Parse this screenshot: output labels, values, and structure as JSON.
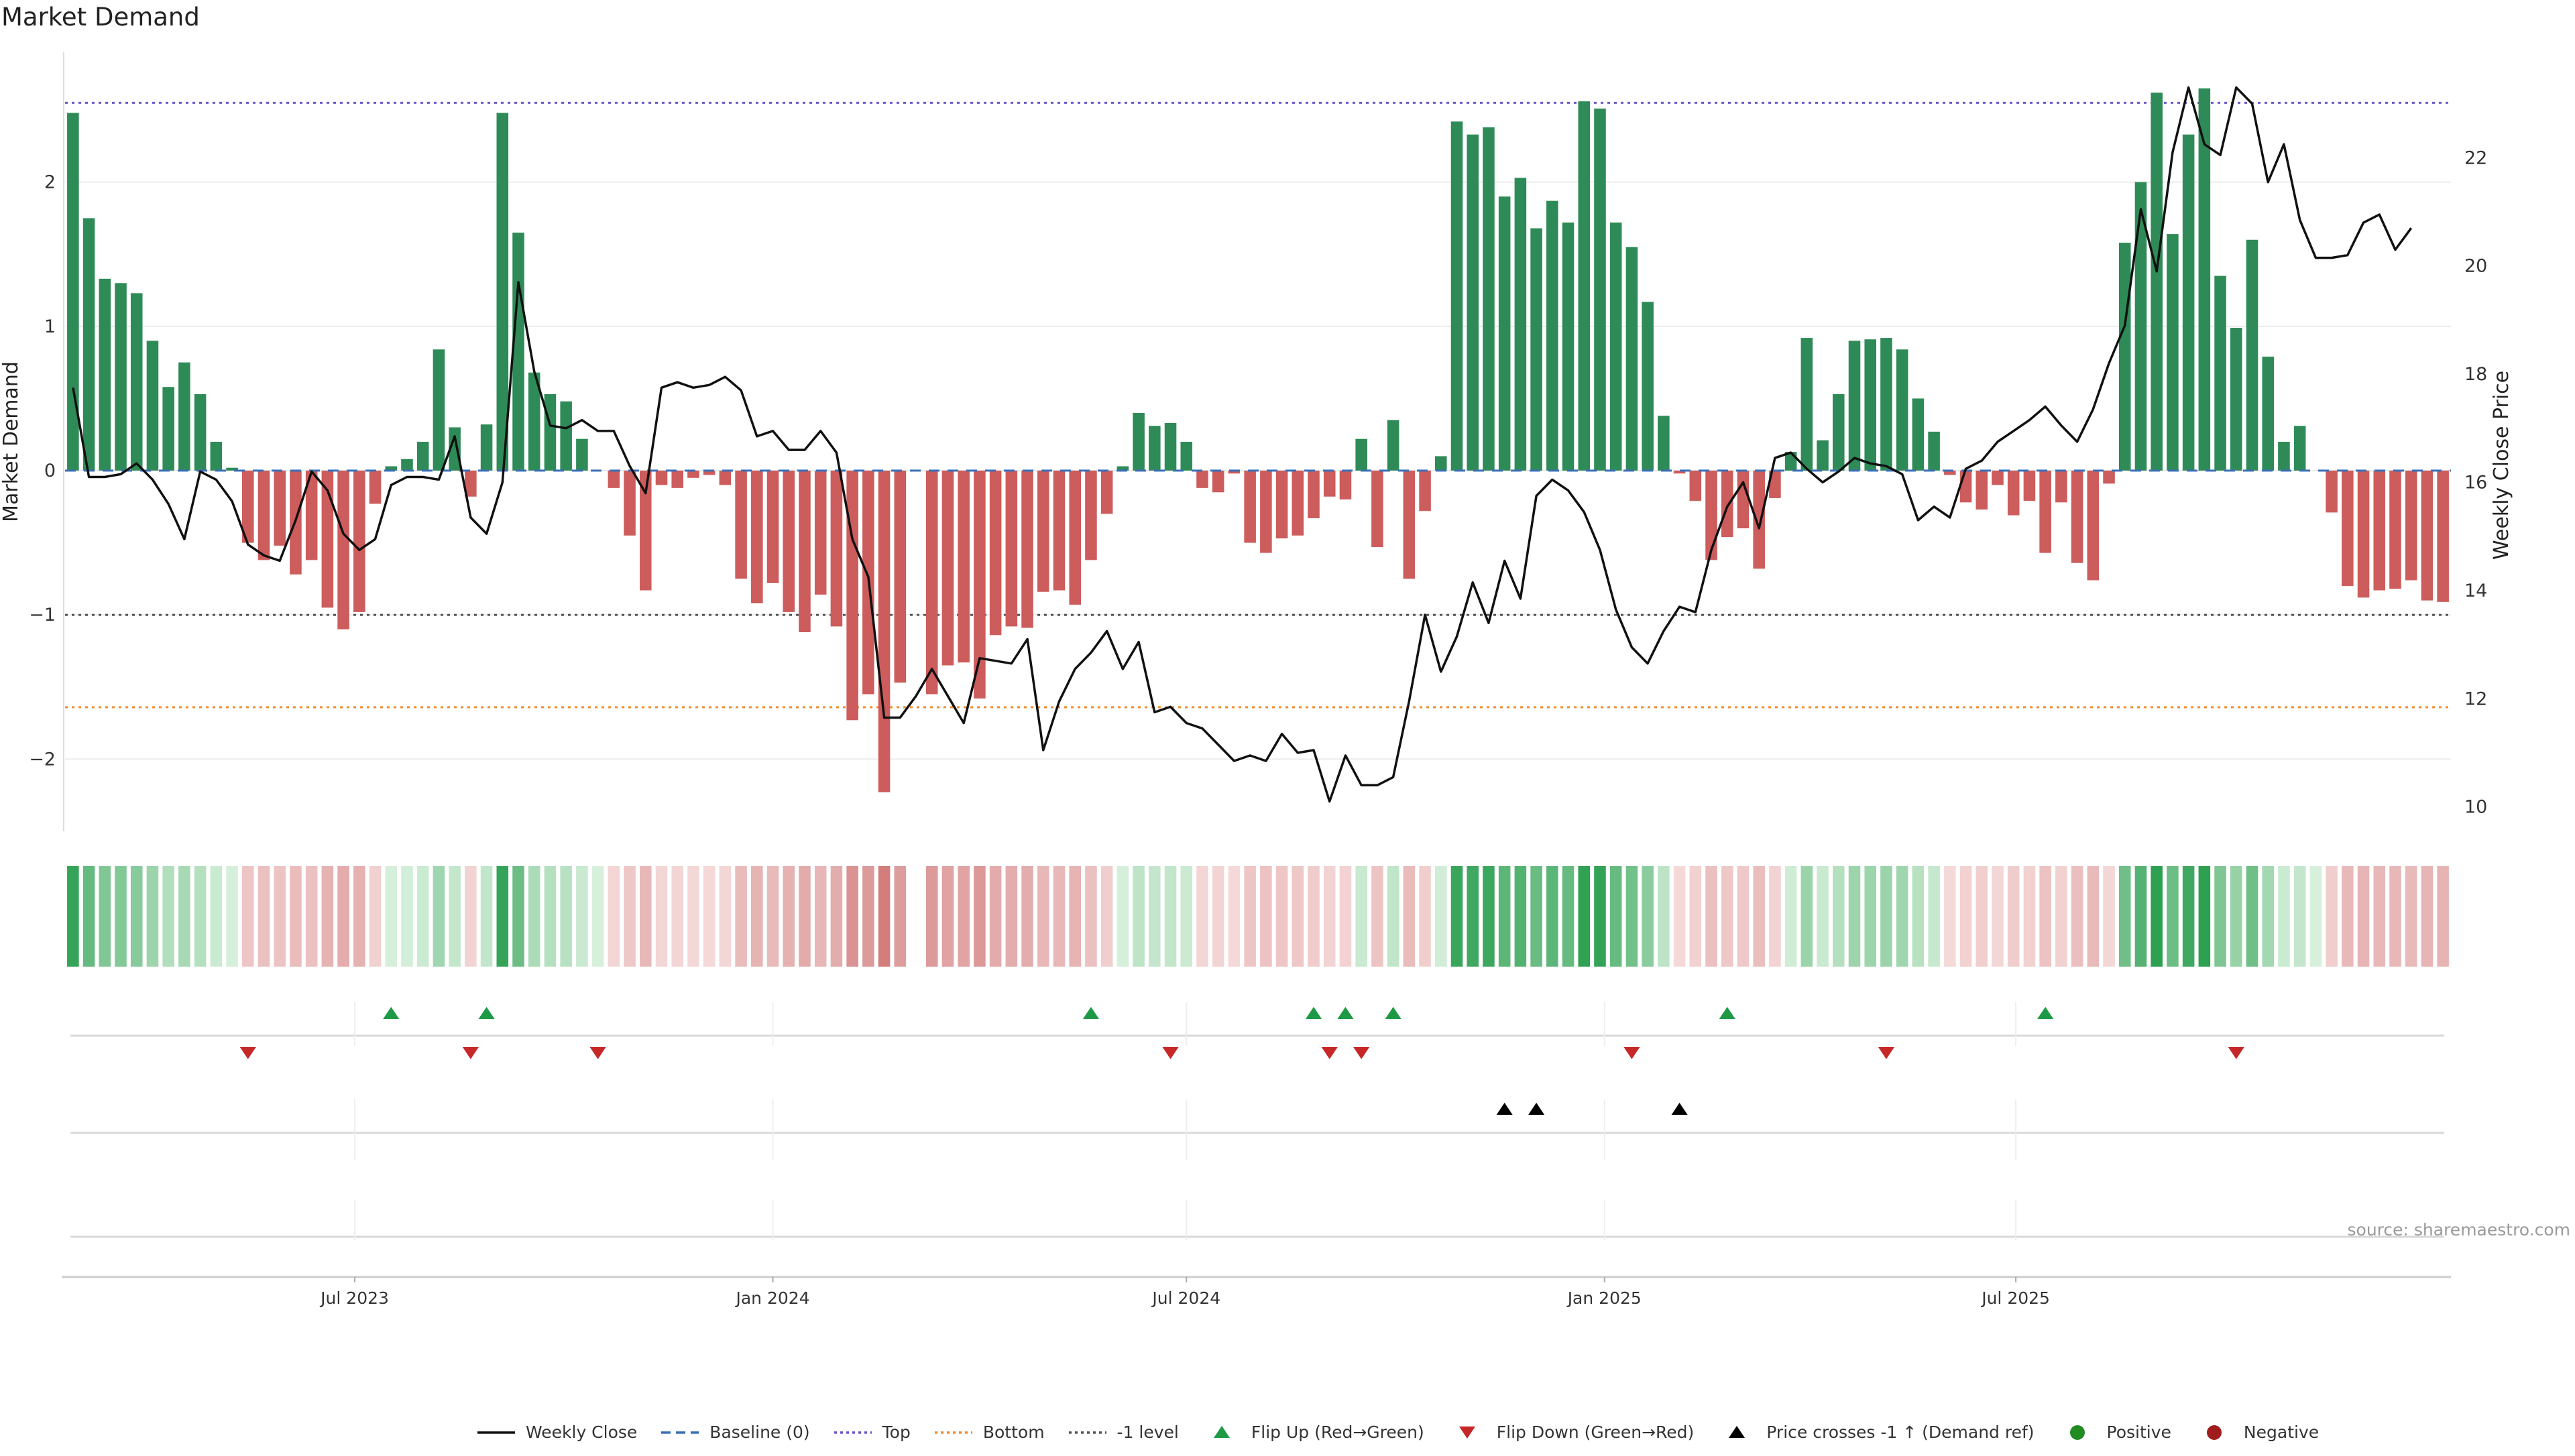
{
  "title": "Market Demand",
  "source": "source: sharemaestro.com",
  "legend": [
    {
      "label": "Weekly Close",
      "kind": "solid",
      "color": "#111111"
    },
    {
      "label": "Baseline (0)",
      "kind": "dashed",
      "color": "#3b6fb6"
    },
    {
      "label": "Top",
      "kind": "dotted",
      "color": "#6a5acd"
    },
    {
      "label": "Bottom",
      "kind": "dotted",
      "color": "#f08c28"
    },
    {
      "label": "-1 level",
      "kind": "dotted",
      "color": "#555555"
    },
    {
      "label": "Flip Up (Red→Green)",
      "kind": "tri-up",
      "color": "#1e9a46"
    },
    {
      "label": "Flip Down (Green→Red)",
      "kind": "tri-down",
      "color": "#c62828"
    },
    {
      "label": "Price crosses -1 ↑ (Demand ref)",
      "kind": "tri-up",
      "color": "#000000"
    },
    {
      "label": "Positive",
      "kind": "dot",
      "color": "#228b22"
    },
    {
      "label": "Negative",
      "kind": "dot",
      "color": "#a11d1d"
    }
  ],
  "colors": {
    "positive": "#2e8b57",
    "negative": "#cd5c5c",
    "price": "#111111"
  },
  "chart_data": {
    "type": "bar",
    "x_start": "2023-02-27",
    "x_step_days": 7,
    "x_ticks": [
      "Jul 2023",
      "Jan 2024",
      "Jul 2024",
      "Jan 2025",
      "Jul 2025"
    ],
    "x_tick_dates": [
      "2023-07-01",
      "2024-01-01",
      "2024-07-01",
      "2025-01-01",
      "2025-07-01"
    ],
    "ylabel": "Market Demand",
    "y2label": "Weekly Close Price",
    "ylim": [
      -2.5,
      2.9
    ],
    "y_ticks": [
      2,
      1,
      0,
      -1,
      -2
    ],
    "y2lim": [
      9.55,
      23.95
    ],
    "y2_ticks": [
      22,
      20,
      18,
      16,
      14,
      12,
      10
    ],
    "levels": {
      "top": 2.55,
      "bottom": -1.64,
      "minus_one": -1.0,
      "baseline": 0
    },
    "series": [
      {
        "name": "Market Demand",
        "values": [
          2.48,
          1.75,
          1.33,
          1.3,
          1.23,
          0.9,
          0.58,
          0.75,
          0.53,
          0.2,
          0.02,
          -0.5,
          -0.62,
          -0.52,
          -0.72,
          -0.62,
          -0.95,
          -1.1,
          -0.98,
          -0.23,
          0.03,
          0.08,
          0.2,
          0.84,
          0.3,
          -0.18,
          0.32,
          2.48,
          1.65,
          0.68,
          0.53,
          0.48,
          0.22,
          0.0,
          -0.12,
          -0.45,
          -0.83,
          -0.1,
          -0.12,
          -0.05,
          -0.03,
          -0.1,
          -0.75,
          -0.92,
          -0.78,
          -0.98,
          -1.12,
          -0.86,
          -1.08,
          -1.73,
          -1.55,
          -2.23,
          -1.47,
          0.0,
          -1.55,
          -1.35,
          -1.33,
          -1.58,
          -1.14,
          -1.08,
          -1.09,
          -0.84,
          -0.83,
          -0.93,
          -0.62,
          -0.3,
          0.03,
          0.4,
          0.31,
          0.33,
          0.2,
          -0.12,
          -0.15,
          -0.02,
          -0.5,
          -0.57,
          -0.47,
          -0.45,
          -0.33,
          -0.18,
          -0.2,
          0.22,
          -0.53,
          0.35,
          -0.75,
          -0.28,
          0.1,
          2.42,
          2.33,
          2.38,
          1.9,
          2.03,
          1.68,
          1.87,
          1.72,
          2.56,
          2.51,
          1.72,
          1.55,
          1.17,
          0.38,
          -0.02,
          -0.21,
          -0.62,
          -0.46,
          -0.4,
          -0.68,
          -0.19,
          0.13,
          0.92,
          0.21,
          0.53,
          0.9,
          0.91,
          0.92,
          0.84,
          0.5,
          0.27,
          -0.03,
          -0.22,
          -0.27,
          -0.1,
          -0.31,
          -0.21,
          -0.57,
          -0.22,
          -0.64,
          -0.76,
          -0.09,
          1.58,
          2.0,
          2.62,
          1.64,
          2.33,
          2.65,
          1.35,
          0.99,
          1.6,
          0.79,
          0.2,
          0.31,
          0.0,
          -0.29,
          -0.8,
          -0.88,
          -0.83,
          -0.82,
          -0.76,
          -0.9,
          -0.91
        ]
      },
      {
        "name": "Weekly Close",
        "axis": "right",
        "values": [
          17.75,
          16.1,
          16.1,
          16.15,
          16.35,
          16.05,
          15.6,
          14.95,
          16.2,
          16.05,
          15.65,
          14.85,
          14.65,
          14.55,
          15.3,
          16.2,
          15.85,
          15.05,
          14.75,
          14.95,
          15.95,
          16.1,
          16.1,
          16.05,
          16.85,
          15.35,
          15.05,
          16.0,
          19.7,
          18.05,
          17.05,
          17.0,
          17.15,
          16.95,
          16.95,
          16.3,
          15.8,
          17.75,
          17.85,
          17.75,
          17.8,
          17.95,
          17.7,
          16.85,
          16.95,
          16.6,
          16.6,
          16.95,
          16.55,
          14.95,
          14.25,
          11.65,
          11.65,
          12.05,
          12.55,
          12.05,
          11.55,
          12.75,
          12.7,
          12.65,
          13.1,
          11.05,
          11.95,
          12.55,
          12.85,
          13.25,
          12.55,
          13.05,
          11.75,
          11.85,
          11.55,
          11.45,
          11.15,
          10.85,
          10.95,
          10.85,
          11.35,
          11.0,
          11.05,
          10.1,
          10.95,
          10.4,
          10.4,
          10.55,
          11.95,
          13.55,
          12.5,
          13.15,
          14.15,
          13.4,
          14.55,
          13.85,
          15.75,
          16.05,
          15.85,
          15.45,
          14.75,
          13.65,
          12.95,
          12.65,
          13.25,
          13.7,
          13.6,
          14.75,
          15.55,
          16.0,
          15.15,
          16.45,
          16.55,
          16.25,
          16.0,
          16.2,
          16.45,
          16.35,
          16.3,
          16.15,
          15.3,
          15.55,
          15.35,
          16.25,
          16.4,
          16.75,
          16.95,
          17.15,
          17.4,
          17.05,
          16.75,
          17.35,
          18.2,
          18.9,
          21.05,
          19.9,
          22.1,
          23.3,
          22.25,
          22.05,
          23.3,
          23.0,
          21.55,
          22.25,
          20.85,
          20.15,
          20.15,
          20.2,
          20.8,
          20.95,
          20.3,
          20.7
        ]
      }
    ],
    "heat_row": {
      "name": "Demand strength",
      "gaps": [
        53
      ]
    },
    "flip_up_index": [
      20,
      26,
      64,
      78,
      80,
      83,
      104,
      124
    ],
    "flip_down_index": [
      11,
      25,
      33,
      69,
      79,
      81,
      98,
      114,
      136
    ],
    "price_cross_index": [
      90,
      92,
      101
    ]
  }
}
